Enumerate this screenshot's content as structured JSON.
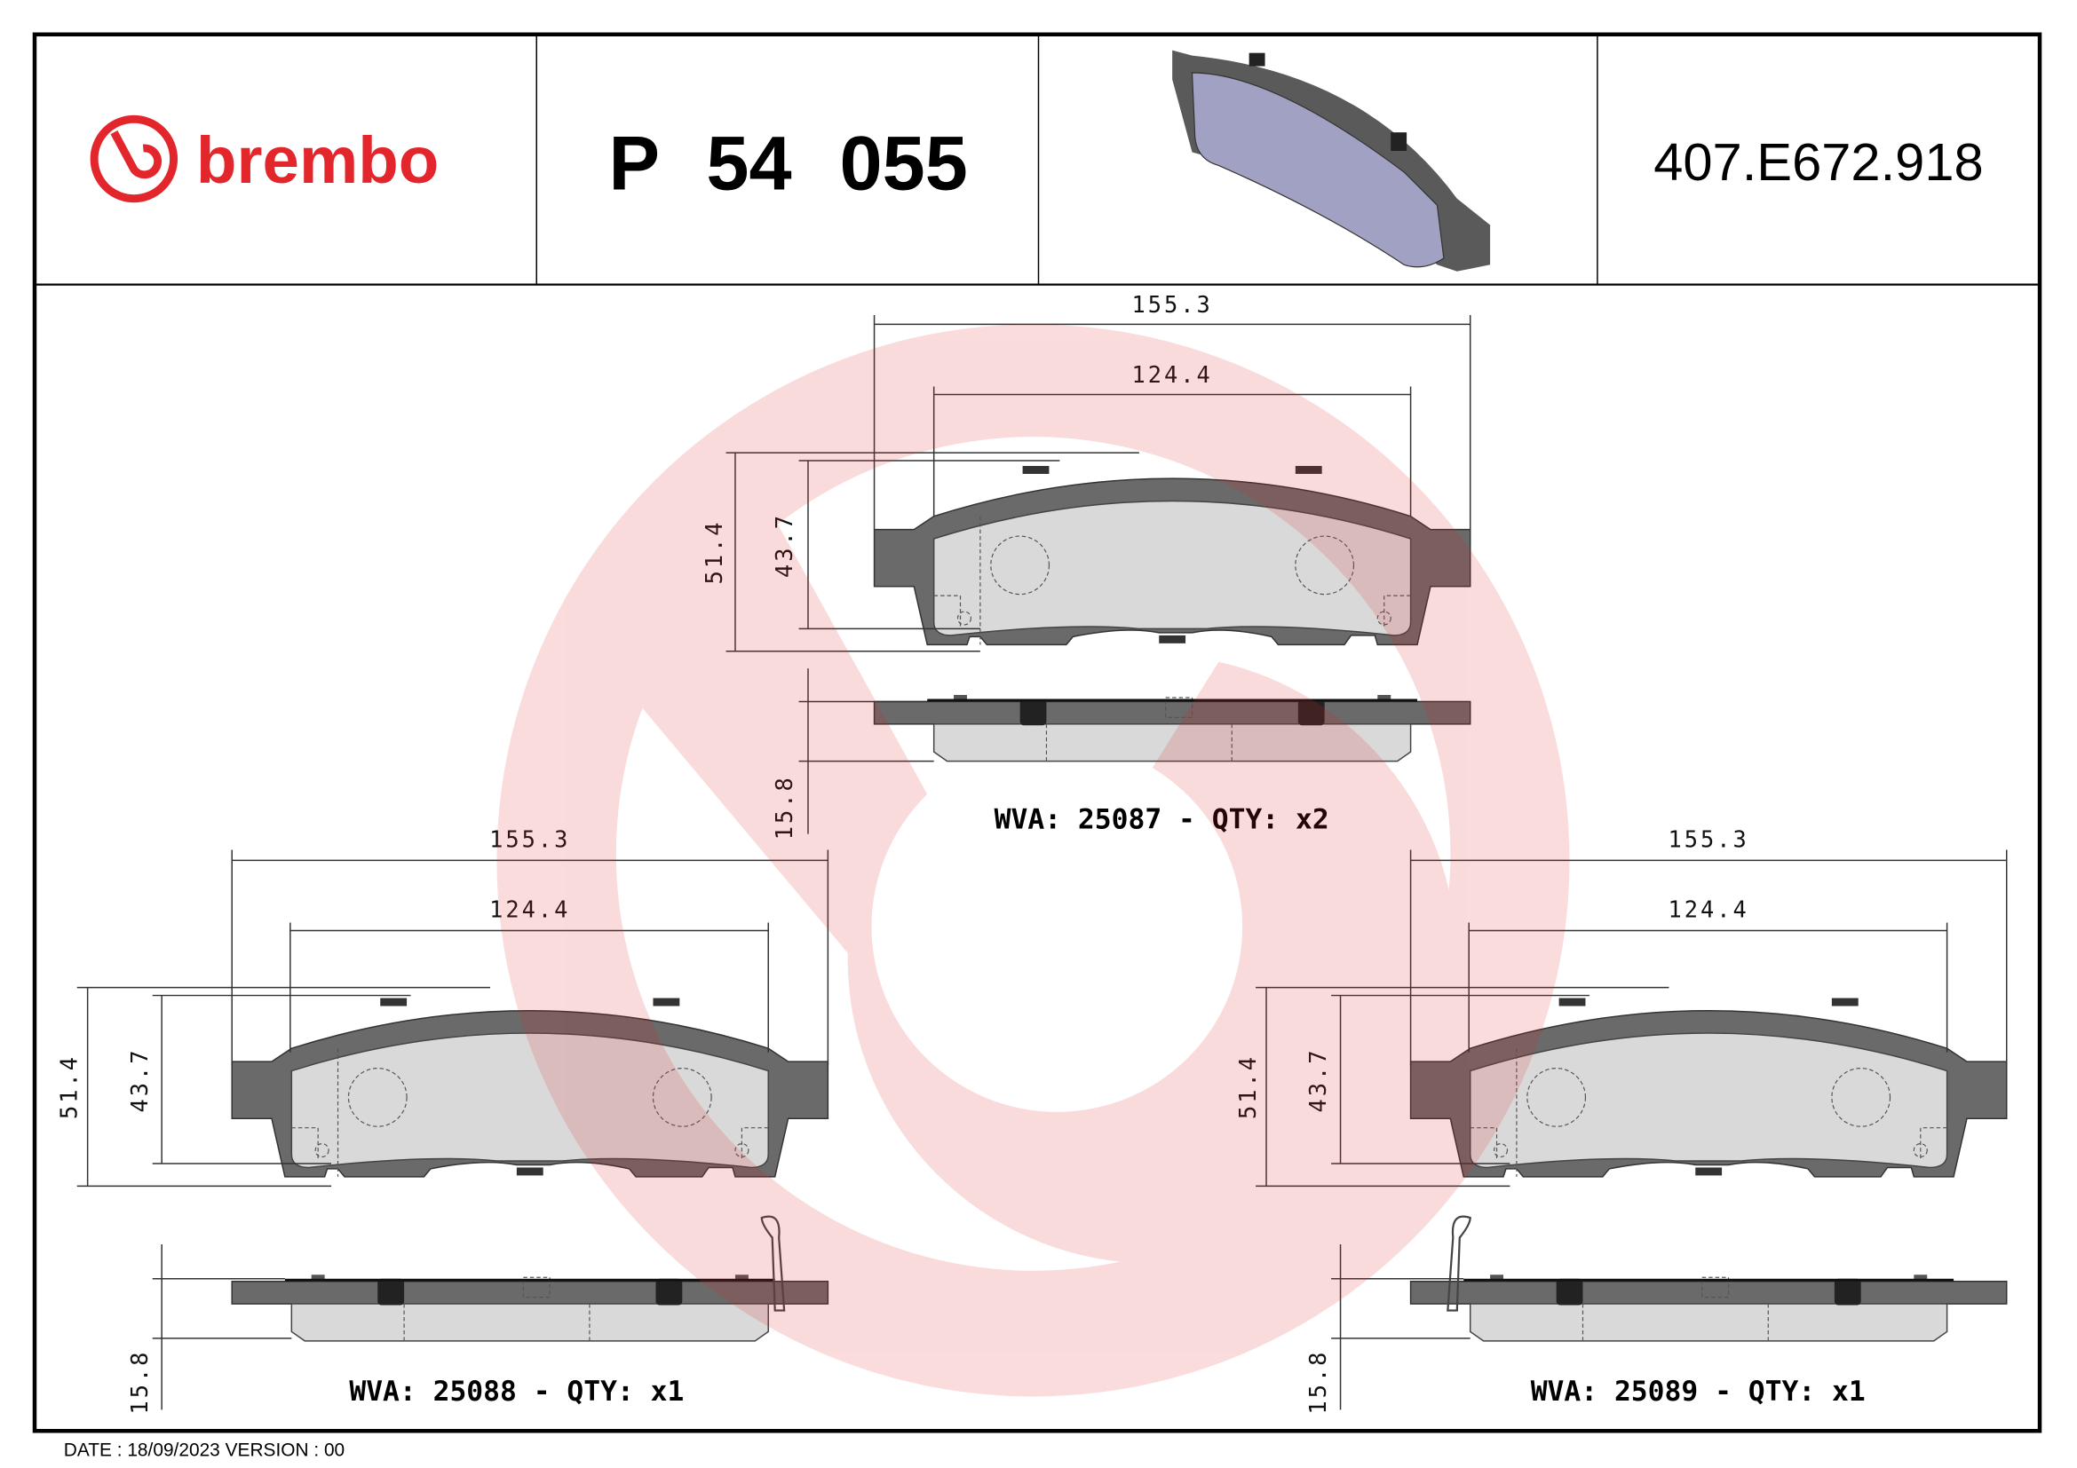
{
  "header": {
    "brand_logo": "brembo",
    "part_number": "P 54 055",
    "reference": "407.E672.918",
    "brand_color": "#e3262c"
  },
  "views": [
    {
      "wva_label": "WVA: 25087 - QTY: x2",
      "width_outer": "155.3",
      "width_inner": "124.4",
      "height_outer": "51.4",
      "height_inner": "43.7",
      "thickness": "15.8"
    },
    {
      "wva_label": "WVA: 25088 - QTY: x1",
      "width_outer": "155.3",
      "width_inner": "124.4",
      "height_outer": "51.4",
      "height_inner": "43.7",
      "thickness": "15.8"
    },
    {
      "wva_label": "WVA: 25089 - QTY: x1",
      "width_outer": "155.3",
      "width_inner": "124.4",
      "height_outer": "51.4",
      "height_inner": "43.7",
      "thickness": "15.8"
    }
  ],
  "footer": {
    "date_version": "DATE : 18/09/2023 VERSION : 00"
  }
}
